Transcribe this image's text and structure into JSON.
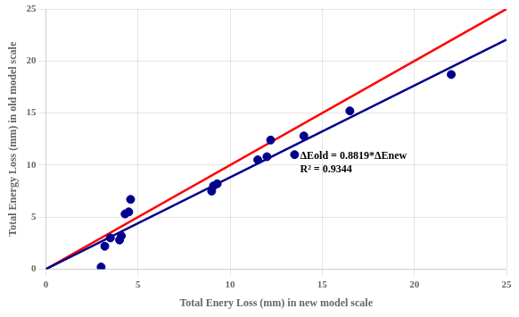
{
  "chart_data": {
    "type": "scatter",
    "x_label": "Total Enery Loss (mm) in new model scale",
    "y_label": "Total Energy Loss (mm) in old model scale",
    "series": [
      {
        "type": "line",
        "color": "#FF0000",
        "line_style": "solid",
        "x": [
          0,
          25
        ],
        "values": [
          0,
          25
        ]
      },
      {
        "type": "line",
        "color": "#00008B",
        "line_style": "solid",
        "x": [
          0,
          25
        ],
        "values": [
          0,
          22.0475
        ]
      },
      {
        "type": "scatter",
        "color": "#00008B",
        "marker": "circle",
        "x": [
          3.0,
          3.2,
          3.5,
          4.0,
          4.1,
          4.3,
          4.5,
          4.6,
          9.0,
          9.1,
          9.3,
          11.5,
          12.0,
          12.2,
          13.5,
          14.0,
          16.5,
          22.0
        ],
        "values": [
          0.2,
          2.2,
          3.0,
          2.8,
          3.2,
          5.3,
          5.5,
          6.7,
          7.5,
          8.0,
          8.2,
          10.5,
          10.8,
          12.4,
          11.0,
          12.8,
          15.2,
          18.7
        ]
      }
    ],
    "annotations": [
      {
        "text": [
          "ΔEold = 0.8819*ΔEnew",
          "R² = 0.9344"
        ],
        "x": 13.8,
        "y": 10.2
      }
    ],
    "xlim": [
      0,
      25
    ],
    "ylim": [
      0,
      25
    ],
    "xticks": [
      0,
      5,
      10,
      15,
      20,
      25
    ],
    "yticks": [
      0,
      5,
      10,
      15,
      20,
      25
    ],
    "grid": true
  }
}
